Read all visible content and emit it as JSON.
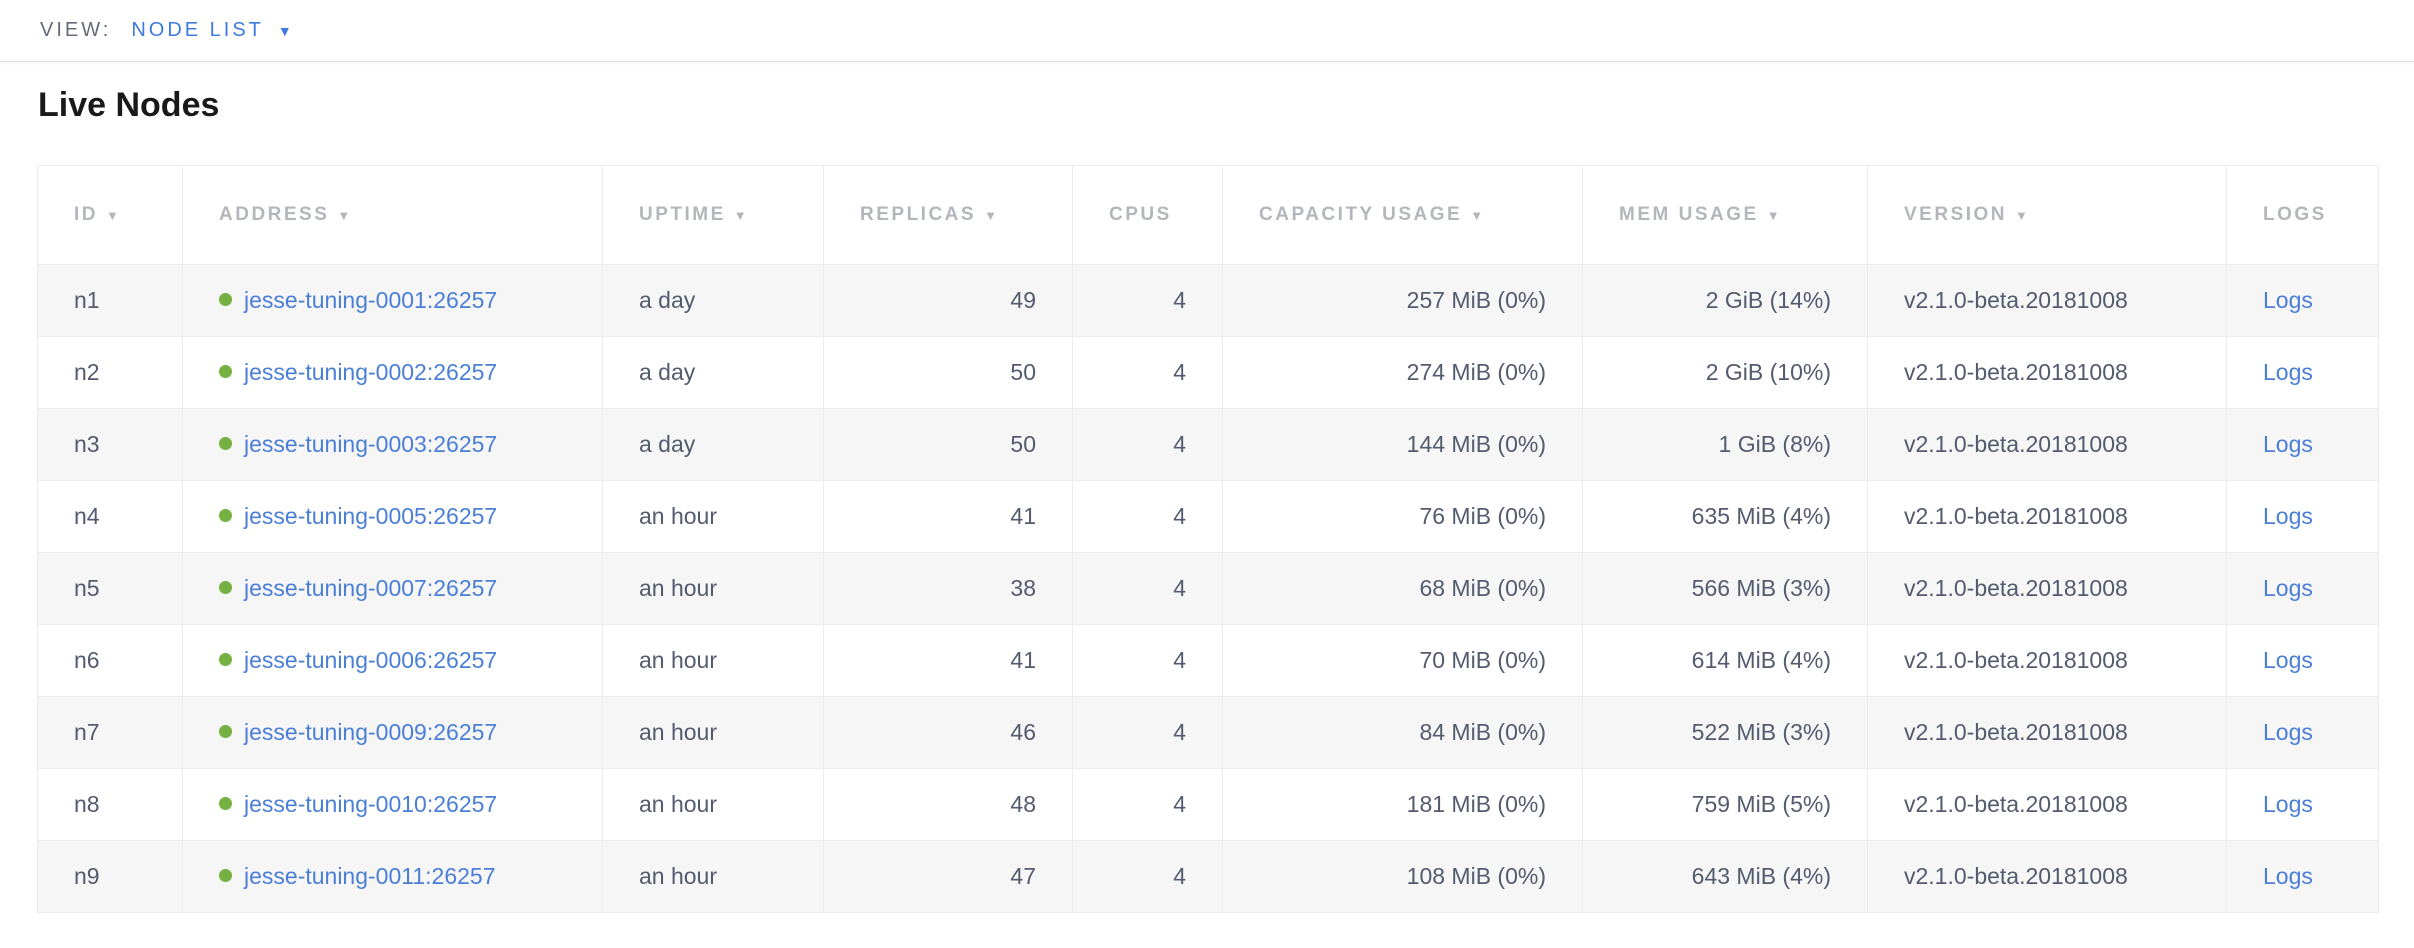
{
  "view_bar": {
    "label": "VIEW:",
    "selected": "NODE LIST"
  },
  "page": {
    "title": "Live Nodes"
  },
  "icons": {
    "dropdown_caret": "▼",
    "sort_desc": "▼",
    "status_dot": "healthy-green-dot"
  },
  "colors": {
    "accent_blue": "#3d7be0",
    "link_blue": "#4a7ed7",
    "status_green": "#76b043",
    "header_text": "#b3b6bb",
    "cell_text": "#535b6e",
    "row_alt_bg": "#f6f6f7",
    "border": "#ececec"
  },
  "table": {
    "columns": [
      {
        "key": "id",
        "label": "ID",
        "sorted": true,
        "align": "left"
      },
      {
        "key": "address",
        "label": "ADDRESS",
        "sorted": true,
        "align": "left"
      },
      {
        "key": "uptime",
        "label": "UPTIME",
        "sorted": true,
        "align": "left"
      },
      {
        "key": "replicas",
        "label": "REPLICAS",
        "sorted": true,
        "align": "right"
      },
      {
        "key": "cpus",
        "label": "CPUS",
        "sorted": false,
        "align": "right"
      },
      {
        "key": "capacity",
        "label": "CAPACITY USAGE",
        "sorted": true,
        "align": "right"
      },
      {
        "key": "mem",
        "label": "MEM USAGE",
        "sorted": true,
        "align": "right"
      },
      {
        "key": "version",
        "label": "VERSION",
        "sorted": true,
        "align": "left"
      },
      {
        "key": "logs",
        "label": "LOGS",
        "sorted": false,
        "align": "left"
      }
    ],
    "rows": [
      {
        "id": "n1",
        "address": "jesse-tuning-0001:26257",
        "uptime": "a day",
        "replicas": "49",
        "cpus": "4",
        "capacity": "257 MiB (0%)",
        "mem": "2 GiB (14%)",
        "version": "v2.1.0-beta.20181008",
        "logs": "Logs"
      },
      {
        "id": "n2",
        "address": "jesse-tuning-0002:26257",
        "uptime": "a day",
        "replicas": "50",
        "cpus": "4",
        "capacity": "274 MiB (0%)",
        "mem": "2 GiB (10%)",
        "version": "v2.1.0-beta.20181008",
        "logs": "Logs"
      },
      {
        "id": "n3",
        "address": "jesse-tuning-0003:26257",
        "uptime": "a day",
        "replicas": "50",
        "cpus": "4",
        "capacity": "144 MiB (0%)",
        "mem": "1 GiB (8%)",
        "version": "v2.1.0-beta.20181008",
        "logs": "Logs"
      },
      {
        "id": "n4",
        "address": "jesse-tuning-0005:26257",
        "uptime": "an hour",
        "replicas": "41",
        "cpus": "4",
        "capacity": "76 MiB (0%)",
        "mem": "635 MiB (4%)",
        "version": "v2.1.0-beta.20181008",
        "logs": "Logs"
      },
      {
        "id": "n5",
        "address": "jesse-tuning-0007:26257",
        "uptime": "an hour",
        "replicas": "38",
        "cpus": "4",
        "capacity": "68 MiB (0%)",
        "mem": "566 MiB (3%)",
        "version": "v2.1.0-beta.20181008",
        "logs": "Logs"
      },
      {
        "id": "n6",
        "address": "jesse-tuning-0006:26257",
        "uptime": "an hour",
        "replicas": "41",
        "cpus": "4",
        "capacity": "70 MiB (0%)",
        "mem": "614 MiB (4%)",
        "version": "v2.1.0-beta.20181008",
        "logs": "Logs"
      },
      {
        "id": "n7",
        "address": "jesse-tuning-0009:26257",
        "uptime": "an hour",
        "replicas": "46",
        "cpus": "4",
        "capacity": "84 MiB (0%)",
        "mem": "522 MiB (3%)",
        "version": "v2.1.0-beta.20181008",
        "logs": "Logs"
      },
      {
        "id": "n8",
        "address": "jesse-tuning-0010:26257",
        "uptime": "an hour",
        "replicas": "48",
        "cpus": "4",
        "capacity": "181 MiB (0%)",
        "mem": "759 MiB (5%)",
        "version": "v2.1.0-beta.20181008",
        "logs": "Logs"
      },
      {
        "id": "n9",
        "address": "jesse-tuning-0011:26257",
        "uptime": "an hour",
        "replicas": "47",
        "cpus": "4",
        "capacity": "108 MiB (0%)",
        "mem": "643 MiB (4%)",
        "version": "v2.1.0-beta.20181008",
        "logs": "Logs"
      }
    ]
  }
}
